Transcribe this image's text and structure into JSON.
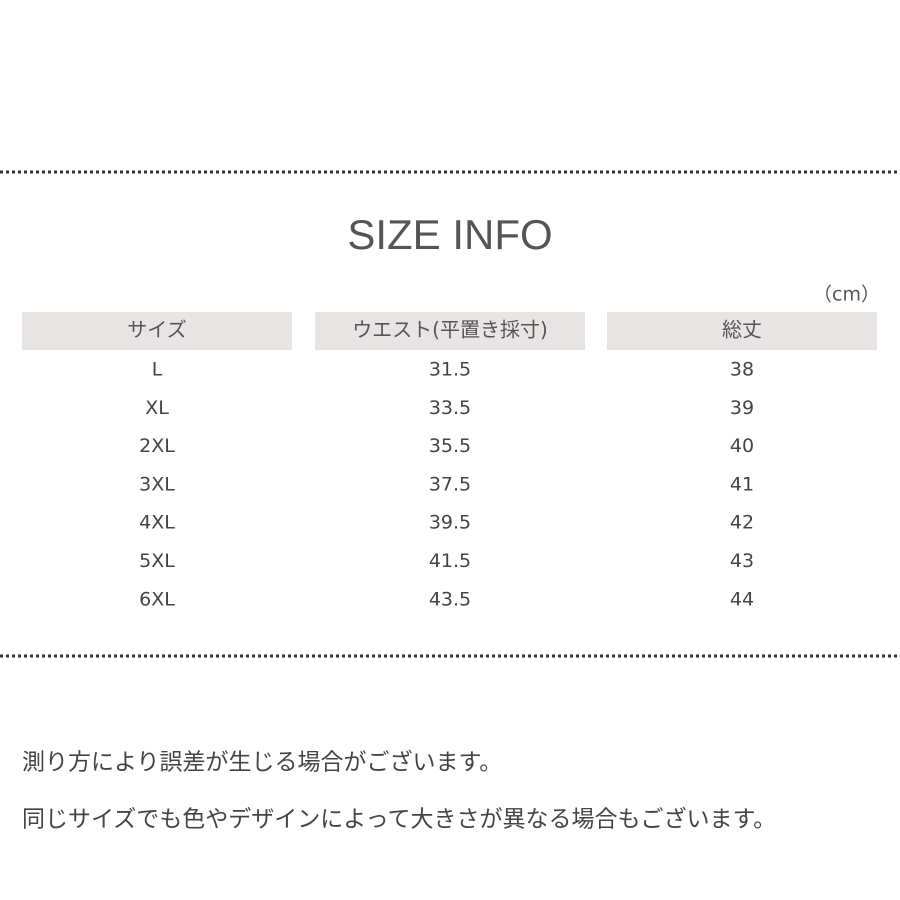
{
  "title": "SIZE INFO",
  "unit": "（cm）",
  "table": {
    "headers": [
      "サイズ",
      "ウエスト(平置き採寸)",
      "総丈"
    ],
    "rows": [
      [
        "L",
        "31.5",
        "38"
      ],
      [
        "XL",
        "33.5",
        "39"
      ],
      [
        "2XL",
        "35.5",
        "40"
      ],
      [
        "3XL",
        "37.5",
        "41"
      ],
      [
        "4XL",
        "39.5",
        "42"
      ],
      [
        "5XL",
        "41.5",
        "43"
      ],
      [
        "6XL",
        "43.5",
        "44"
      ]
    ]
  },
  "notes": [
    "測り方により誤差が生じる場合がございます。",
    "同じサイズでも色やデザインによって大きさが異なる場合もございます。"
  ]
}
